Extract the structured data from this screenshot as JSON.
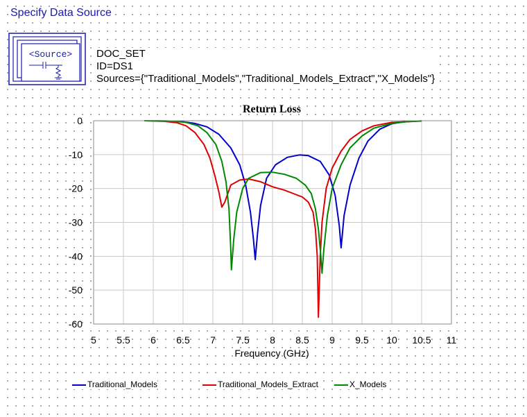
{
  "header": {
    "title": "Specify Data Source"
  },
  "source_block": {
    "icon_label": "<Source>",
    "name": "DOC_SET",
    "id_line": "ID=DS1",
    "sources_line": "Sources={\"Traditional_Models\",\"Traditional_Models_Extract\",\"X_Models\"}"
  },
  "chart_data": {
    "type": "line",
    "title": "Return Loss",
    "xlabel": "Frequency (GHz)",
    "ylabel": "",
    "xlim": [
      5,
      11
    ],
    "ylim": [
      -60,
      0
    ],
    "x_ticks": [
      5,
      5.5,
      6,
      6.5,
      7,
      7.5,
      8,
      8.5,
      9,
      9.5,
      10,
      10.5,
      11
    ],
    "x_tick_labels": [
      "5",
      "5.5",
      "6",
      "6.5",
      "7",
      "7.5",
      "8",
      "8.5",
      "9",
      "9.5",
      "10",
      "10.5",
      "11"
    ],
    "y_ticks": [
      0,
      -10,
      -20,
      -30,
      -40,
      -50,
      -60
    ],
    "y_tick_labels": [
      "0",
      "-10",
      "-20",
      "-30",
      "-40",
      "-50",
      "-60"
    ],
    "grid": true,
    "legend_position": "bottom",
    "series": [
      {
        "name": "Traditional_Models",
        "color": "#0000cc",
        "points": [
          [
            5.85,
            0
          ],
          [
            6.2,
            -0.05
          ],
          [
            6.5,
            -0.3
          ],
          [
            6.7,
            -0.8
          ],
          [
            6.9,
            -1.8
          ],
          [
            7.1,
            -4
          ],
          [
            7.3,
            -8
          ],
          [
            7.45,
            -13
          ],
          [
            7.55,
            -19
          ],
          [
            7.63,
            -27
          ],
          [
            7.68,
            -35
          ],
          [
            7.71,
            -41
          ],
          [
            7.75,
            -33
          ],
          [
            7.8,
            -25
          ],
          [
            7.9,
            -17
          ],
          [
            8.05,
            -13
          ],
          [
            8.25,
            -10.8
          ],
          [
            8.45,
            -10.1
          ],
          [
            8.6,
            -10.3
          ],
          [
            8.8,
            -12
          ],
          [
            8.95,
            -16
          ],
          [
            9.05,
            -22
          ],
          [
            9.12,
            -31
          ],
          [
            9.15,
            -37.5
          ],
          [
            9.2,
            -28
          ],
          [
            9.3,
            -19
          ],
          [
            9.45,
            -11
          ],
          [
            9.6,
            -6
          ],
          [
            9.8,
            -2.5
          ],
          [
            10,
            -0.9
          ],
          [
            10.2,
            -0.3
          ],
          [
            10.5,
            -0.05
          ]
        ]
      },
      {
        "name": "Traditional_Models_Extract",
        "color": "#dd0000",
        "points": [
          [
            5.85,
            0
          ],
          [
            6.2,
            -0.2
          ],
          [
            6.4,
            -0.6
          ],
          [
            6.55,
            -1.5
          ],
          [
            6.7,
            -3.5
          ],
          [
            6.85,
            -7
          ],
          [
            6.95,
            -11
          ],
          [
            7.03,
            -16
          ],
          [
            7.1,
            -21
          ],
          [
            7.15,
            -25.5
          ],
          [
            7.2,
            -24
          ],
          [
            7.3,
            -19
          ],
          [
            7.45,
            -17.5
          ],
          [
            7.6,
            -17.2
          ],
          [
            7.8,
            -18
          ],
          [
            8.0,
            -19.5
          ],
          [
            8.2,
            -20.5
          ],
          [
            8.35,
            -21.5
          ],
          [
            8.5,
            -22.5
          ],
          [
            8.6,
            -24
          ],
          [
            8.68,
            -27
          ],
          [
            8.72,
            -32
          ],
          [
            8.75,
            -40
          ],
          [
            8.77,
            -58
          ],
          [
            8.8,
            -40
          ],
          [
            8.83,
            -30
          ],
          [
            8.9,
            -20
          ],
          [
            9.0,
            -14
          ],
          [
            9.15,
            -9
          ],
          [
            9.3,
            -5.5
          ],
          [
            9.5,
            -3
          ],
          [
            9.7,
            -1.5
          ],
          [
            10,
            -0.5
          ],
          [
            10.5,
            -0.1
          ]
        ]
      },
      {
        "name": "X_Models",
        "color": "#008800",
        "points": [
          [
            5.85,
            0
          ],
          [
            6.3,
            -0.1
          ],
          [
            6.55,
            -0.5
          ],
          [
            6.75,
            -1.5
          ],
          [
            6.9,
            -3.5
          ],
          [
            7.05,
            -7
          ],
          [
            7.15,
            -12
          ],
          [
            7.22,
            -18
          ],
          [
            7.27,
            -26
          ],
          [
            7.3,
            -38
          ],
          [
            7.31,
            -44
          ],
          [
            7.35,
            -35
          ],
          [
            7.4,
            -27
          ],
          [
            7.5,
            -20
          ],
          [
            7.6,
            -17
          ],
          [
            7.8,
            -15.3
          ],
          [
            8.0,
            -15.2
          ],
          [
            8.2,
            -15.8
          ],
          [
            8.4,
            -17
          ],
          [
            8.55,
            -19
          ],
          [
            8.65,
            -21.5
          ],
          [
            8.72,
            -26
          ],
          [
            8.77,
            -32
          ],
          [
            8.81,
            -40
          ],
          [
            8.83,
            -45
          ],
          [
            8.86,
            -38
          ],
          [
            8.92,
            -28
          ],
          [
            9.0,
            -20
          ],
          [
            9.15,
            -13
          ],
          [
            9.3,
            -8
          ],
          [
            9.5,
            -4.5
          ],
          [
            9.7,
            -2.2
          ],
          [
            10.0,
            -0.8
          ],
          [
            10.3,
            -0.2
          ],
          [
            10.5,
            -0.05
          ]
        ]
      }
    ]
  }
}
